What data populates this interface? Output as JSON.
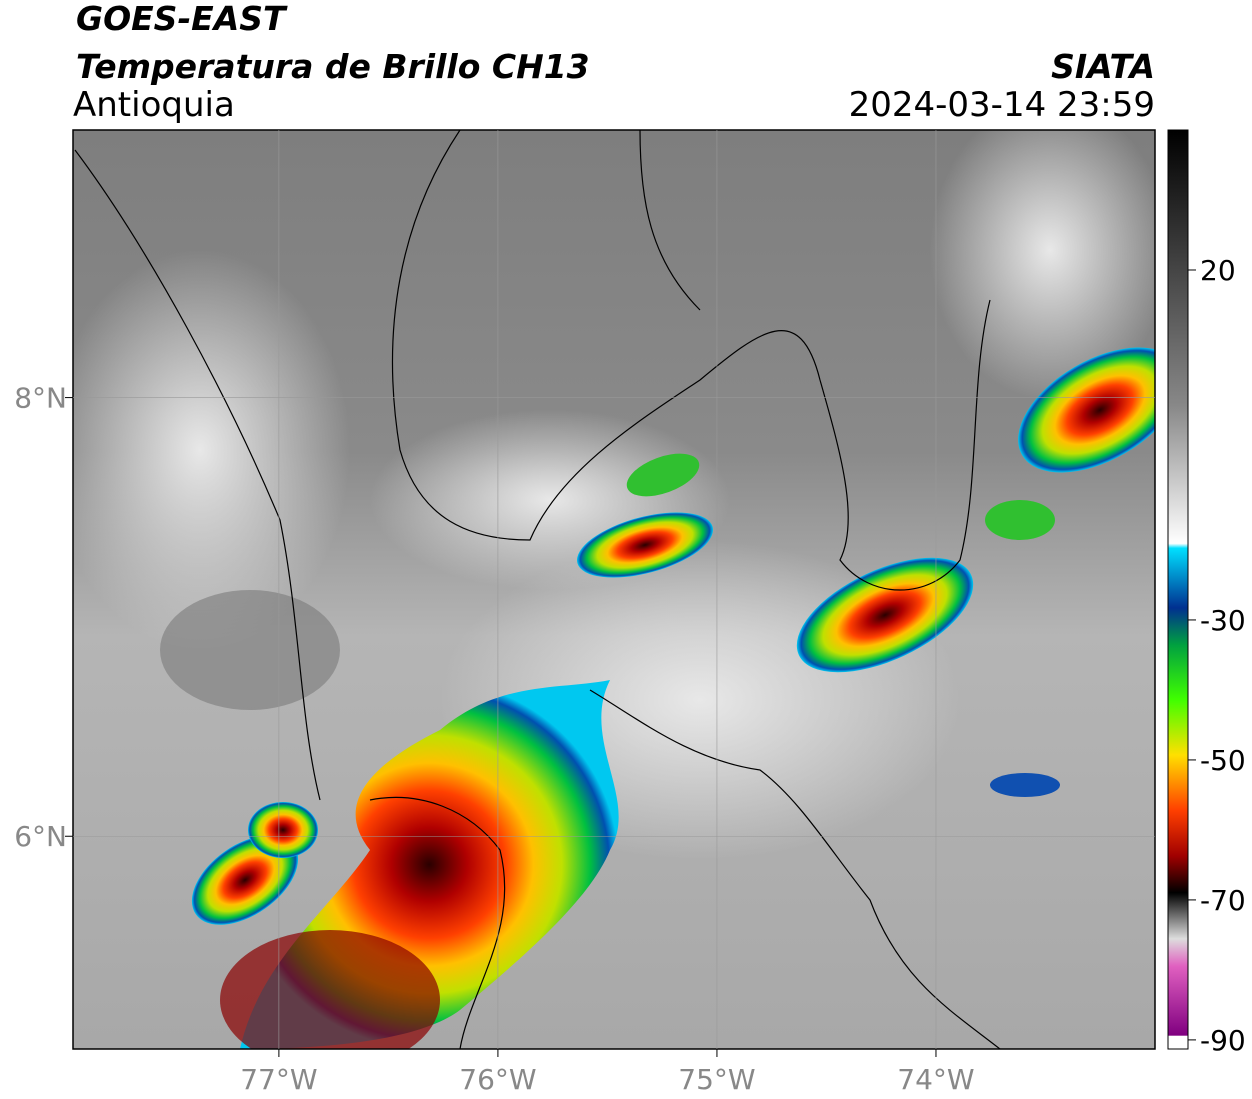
{
  "header": {
    "satellite": "GOES-EAST",
    "product": "Temperatura de Brillo CH13",
    "region": "Antioquia",
    "source": "SIATA",
    "timestamp": "2024-03-14 23:59"
  },
  "map": {
    "xlim": [
      -77.94,
      -73.0
    ],
    "ylim": [
      5.03,
      9.22
    ],
    "xticks": [
      {
        "value": -77,
        "label": "77°W"
      },
      {
        "value": -76,
        "label": "76°W"
      },
      {
        "value": -75,
        "label": "75°W"
      },
      {
        "value": -74,
        "label": "74°W"
      }
    ],
    "yticks": [
      {
        "value": 8,
        "label": "8°N"
      },
      {
        "value": 6,
        "label": "6°N"
      }
    ]
  },
  "colorbar": {
    "lim": [
      -91.3,
      40
    ],
    "ticks": [
      20,
      -30,
      -50,
      -70,
      -90
    ]
  }
}
